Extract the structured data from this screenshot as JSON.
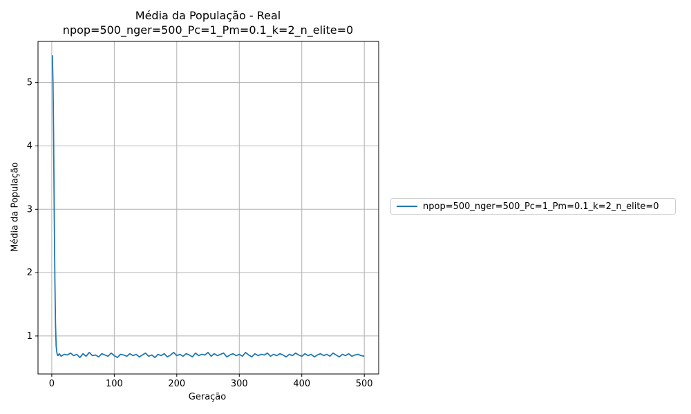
{
  "chart_data": {
    "type": "line",
    "title": "Média da População - Real",
    "subtitle": "npop=500_nger=500_Pc=1_Pm=0.1_k=2_n_elite=0",
    "xlabel": "Geração",
    "ylabel": "Média da População",
    "xlim": [
      -22,
      523
    ],
    "ylim": [
      0.4,
      5.65
    ],
    "xticks": [
      0,
      100,
      200,
      300,
      400,
      500
    ],
    "yticks": [
      1,
      2,
      3,
      4,
      5
    ],
    "grid": true,
    "legend_position": "outside-right",
    "colors": {
      "series": "#1f77b4"
    },
    "series": [
      {
        "name": "npop=500_nger=500_Pc=1_Pm=0.1_k=2_n_elite=0",
        "x": [
          1,
          2,
          3,
          4,
          5,
          6,
          7,
          8,
          9,
          10,
          12,
          15,
          20,
          25,
          30,
          35,
          40,
          45,
          50,
          55,
          60,
          65,
          70,
          75,
          80,
          85,
          90,
          95,
          100,
          105,
          110,
          115,
          120,
          125,
          130,
          135,
          140,
          145,
          150,
          155,
          160,
          165,
          170,
          175,
          180,
          185,
          190,
          195,
          200,
          205,
          210,
          215,
          220,
          225,
          230,
          235,
          240,
          245,
          250,
          255,
          260,
          265,
          270,
          275,
          280,
          285,
          290,
          295,
          300,
          305,
          310,
          315,
          320,
          325,
          330,
          335,
          340,
          345,
          350,
          355,
          360,
          365,
          370,
          375,
          380,
          385,
          390,
          395,
          400,
          405,
          410,
          415,
          420,
          425,
          430,
          435,
          440,
          445,
          450,
          455,
          460,
          465,
          470,
          475,
          480,
          485,
          490,
          495,
          500
        ],
        "values": [
          5.43,
          5.0,
          4.1,
          2.9,
          1.9,
          1.2,
          0.85,
          0.75,
          0.7,
          0.69,
          0.72,
          0.68,
          0.71,
          0.7,
          0.73,
          0.69,
          0.71,
          0.66,
          0.72,
          0.68,
          0.74,
          0.69,
          0.7,
          0.67,
          0.72,
          0.7,
          0.68,
          0.73,
          0.69,
          0.66,
          0.71,
          0.7,
          0.68,
          0.72,
          0.69,
          0.71,
          0.67,
          0.7,
          0.73,
          0.68,
          0.7,
          0.66,
          0.71,
          0.69,
          0.72,
          0.67,
          0.7,
          0.74,
          0.69,
          0.71,
          0.68,
          0.72,
          0.7,
          0.67,
          0.73,
          0.69,
          0.71,
          0.7,
          0.74,
          0.68,
          0.72,
          0.69,
          0.71,
          0.73,
          0.67,
          0.7,
          0.72,
          0.69,
          0.71,
          0.68,
          0.74,
          0.7,
          0.67,
          0.72,
          0.69,
          0.71,
          0.7,
          0.73,
          0.68,
          0.71,
          0.69,
          0.72,
          0.7,
          0.67,
          0.71,
          0.69,
          0.73,
          0.7,
          0.68,
          0.72,
          0.69,
          0.71,
          0.67,
          0.7,
          0.72,
          0.69,
          0.71,
          0.68,
          0.73,
          0.7,
          0.67,
          0.71,
          0.69,
          0.72,
          0.68,
          0.7,
          0.71,
          0.69,
          0.68
        ]
      }
    ]
  }
}
